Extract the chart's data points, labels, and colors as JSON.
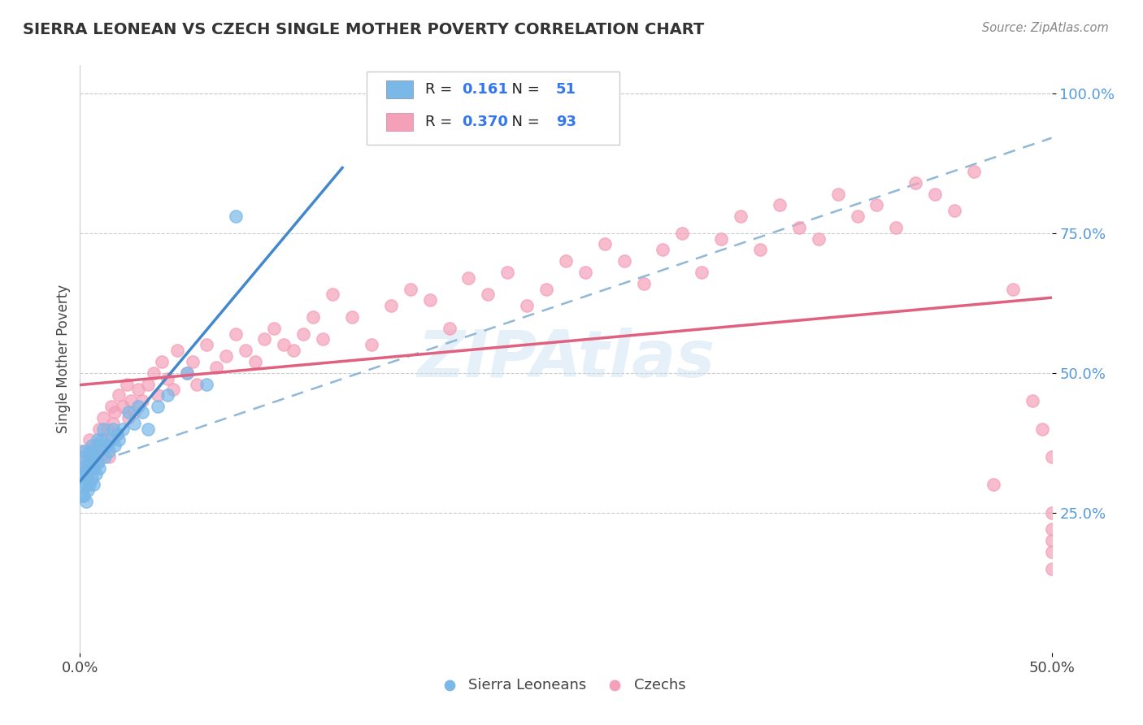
{
  "title": "SIERRA LEONEAN VS CZECH SINGLE MOTHER POVERTY CORRELATION CHART",
  "source": "Source: ZipAtlas.com",
  "ylabel": "Single Mother Poverty",
  "legend_label1": "Sierra Leoneans",
  "legend_label2": "Czechs",
  "R1": "0.161",
  "N1": "51",
  "R2": "0.370",
  "N2": "93",
  "color_sl": "#7ab8e8",
  "color_cz": "#f4a0b8",
  "color_sl_line": "#4488cc",
  "color_cz_line": "#e06080",
  "color_dashed_line": "#90b8d8",
  "xlim": [
    0.0,
    0.5
  ],
  "ylim": [
    0.0,
    1.05
  ],
  "sl_x": [
    0.001,
    0.001,
    0.001,
    0.002,
    0.002,
    0.002,
    0.002,
    0.003,
    0.003,
    0.003,
    0.003,
    0.004,
    0.004,
    0.004,
    0.005,
    0.005,
    0.005,
    0.005,
    0.006,
    0.006,
    0.006,
    0.007,
    0.007,
    0.007,
    0.008,
    0.008,
    0.009,
    0.009,
    0.01,
    0.01,
    0.011,
    0.012,
    0.013,
    0.014,
    0.015,
    0.016,
    0.017,
    0.018,
    0.019,
    0.02,
    0.022,
    0.025,
    0.028,
    0.03,
    0.032,
    0.035,
    0.04,
    0.045,
    0.055,
    0.065,
    0.08
  ],
  "sl_y": [
    0.3,
    0.28,
    0.33,
    0.35,
    0.32,
    0.36,
    0.28,
    0.3,
    0.33,
    0.27,
    0.32,
    0.31,
    0.34,
    0.29,
    0.36,
    0.33,
    0.3,
    0.35,
    0.34,
    0.31,
    0.37,
    0.35,
    0.33,
    0.3,
    0.36,
    0.32,
    0.38,
    0.34,
    0.37,
    0.33,
    0.38,
    0.4,
    0.35,
    0.37,
    0.36,
    0.38,
    0.4,
    0.37,
    0.39,
    0.38,
    0.4,
    0.43,
    0.41,
    0.44,
    0.43,
    0.4,
    0.44,
    0.46,
    0.5,
    0.48,
    0.78
  ],
  "cz_x": [
    0.001,
    0.002,
    0.003,
    0.005,
    0.006,
    0.007,
    0.008,
    0.009,
    0.01,
    0.011,
    0.012,
    0.013,
    0.014,
    0.015,
    0.016,
    0.017,
    0.018,
    0.019,
    0.02,
    0.022,
    0.024,
    0.025,
    0.026,
    0.028,
    0.03,
    0.032,
    0.035,
    0.038,
    0.04,
    0.042,
    0.045,
    0.048,
    0.05,
    0.055,
    0.058,
    0.06,
    0.065,
    0.07,
    0.075,
    0.08,
    0.085,
    0.09,
    0.095,
    0.1,
    0.105,
    0.11,
    0.115,
    0.12,
    0.125,
    0.13,
    0.14,
    0.15,
    0.16,
    0.17,
    0.18,
    0.19,
    0.2,
    0.21,
    0.22,
    0.23,
    0.24,
    0.25,
    0.26,
    0.27,
    0.28,
    0.29,
    0.3,
    0.31,
    0.32,
    0.33,
    0.34,
    0.35,
    0.36,
    0.37,
    0.38,
    0.39,
    0.4,
    0.41,
    0.42,
    0.43,
    0.44,
    0.45,
    0.46,
    0.47,
    0.48,
    0.49,
    0.495,
    0.5,
    0.5,
    0.5,
    0.5,
    0.5,
    0.5
  ],
  "cz_y": [
    0.36,
    0.34,
    0.32,
    0.38,
    0.33,
    0.35,
    0.37,
    0.34,
    0.4,
    0.36,
    0.42,
    0.38,
    0.4,
    0.35,
    0.44,
    0.41,
    0.43,
    0.39,
    0.46,
    0.44,
    0.48,
    0.42,
    0.45,
    0.43,
    0.47,
    0.45,
    0.48,
    0.5,
    0.46,
    0.52,
    0.49,
    0.47,
    0.54,
    0.5,
    0.52,
    0.48,
    0.55,
    0.51,
    0.53,
    0.57,
    0.54,
    0.52,
    0.56,
    0.58,
    0.55,
    0.54,
    0.57,
    0.6,
    0.56,
    0.64,
    0.6,
    0.55,
    0.62,
    0.65,
    0.63,
    0.58,
    0.67,
    0.64,
    0.68,
    0.62,
    0.65,
    0.7,
    0.68,
    0.73,
    0.7,
    0.66,
    0.72,
    0.75,
    0.68,
    0.74,
    0.78,
    0.72,
    0.8,
    0.76,
    0.74,
    0.82,
    0.78,
    0.8,
    0.76,
    0.84,
    0.82,
    0.79,
    0.86,
    0.3,
    0.65,
    0.45,
    0.4,
    0.35,
    0.2,
    0.15,
    0.18,
    0.22,
    0.25
  ]
}
